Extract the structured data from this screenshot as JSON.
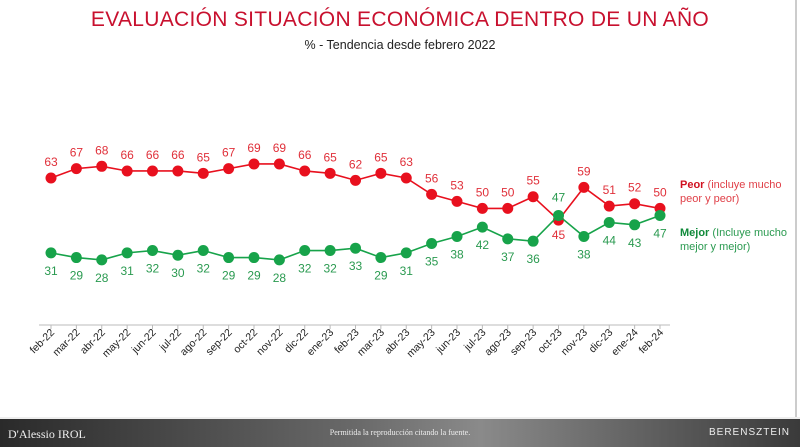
{
  "chart_data": {
    "type": "line",
    "title": "EVALUACIÓN SITUACIÓN ECONÓMICA DENTRO DE UN AÑO",
    "subtitle": "% - Tendencia  desde febrero 2022",
    "categories": [
      "feb-22",
      "mar-22",
      "abr-22",
      "may-22",
      "jun-22",
      "jul-22",
      "ago-22",
      "sep-22",
      "oct-22",
      "nov-22",
      "dic-22",
      "ene-23",
      "feb-23",
      "mar-23",
      "abr-23",
      "may-23",
      "jun-23",
      "jul-23",
      "ago-23",
      "sep-23",
      "oct-23",
      "nov-23",
      "dic-23",
      "ene-24",
      "feb-24"
    ],
    "series": [
      {
        "name": "Peor",
        "legend_bold": "Peor",
        "legend_rest": " (incluye mucho peor y peor)",
        "color": "#e8101e",
        "label_color": "#e0303a",
        "values": [
          63,
          67,
          68,
          66,
          66,
          66,
          65,
          67,
          69,
          69,
          66,
          65,
          62,
          65,
          63,
          56,
          53,
          50,
          50,
          55,
          45,
          59,
          51,
          52,
          50
        ]
      },
      {
        "name": "Mejor",
        "legend_bold": "Mejor",
        "legend_rest": " (Incluye mucho mejor y mejor)",
        "color": "#17a34a",
        "label_color": "#2a9a50",
        "values": [
          31,
          29,
          28,
          31,
          32,
          30,
          32,
          29,
          29,
          28,
          32,
          32,
          33,
          29,
          31,
          35,
          38,
          42,
          37,
          36,
          47,
          38,
          44,
          43,
          47
        ]
      }
    ],
    "grid": false,
    "legend": "right"
  },
  "footer": {
    "left_logo": "D'Alessio IROL",
    "center": "Permitida la reproducción citando la fuente.",
    "right_logo": "BERENSZTEIN"
  }
}
